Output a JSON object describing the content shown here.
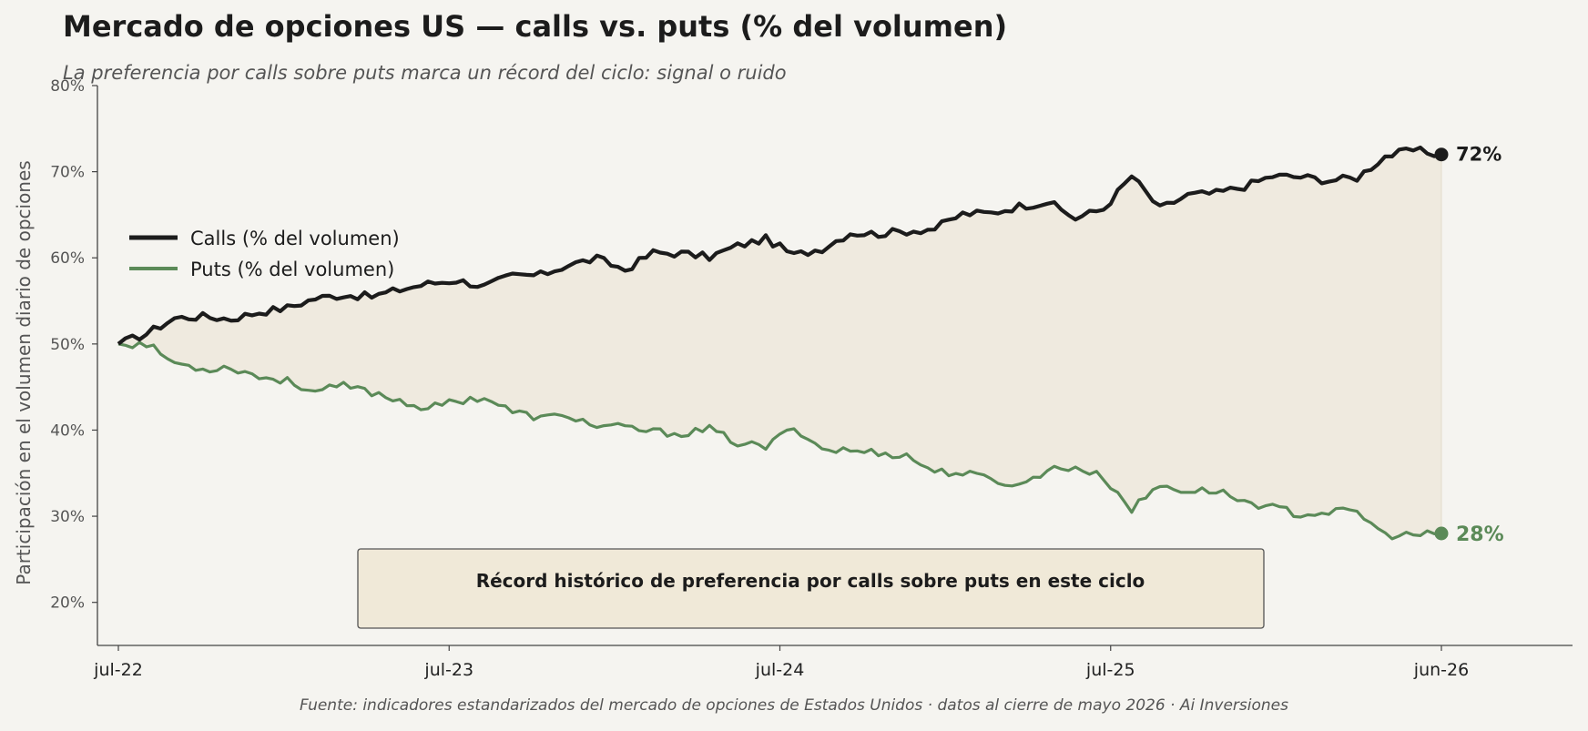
{
  "header": {
    "title": "Mercado de opciones US — calls vs. puts (% del volumen)",
    "subtitle": "La preferencia por calls sobre puts marca un récord del ciclo: signal o ruido"
  },
  "footer": {
    "source": "Fuente: indicadores estandarizados del mercado de opciones de Estados Unidos · datos al cierre de mayo 2026 · Ai Inversiones"
  },
  "colors": {
    "calls": "#1c1c1c",
    "puts": "#5b8a58",
    "fill": "#efeadf",
    "annotation_bg": "#f0e9d8",
    "axis": "#444444",
    "tick_text": "#555555"
  },
  "chart_data": {
    "type": "line",
    "xlabel": "",
    "ylabel": "Participación en el volumen diario de opciones",
    "ylim": [
      15,
      80
    ],
    "yticks": [
      20,
      30,
      40,
      50,
      60,
      70,
      80
    ],
    "ytick_labels": [
      "20%",
      "30%",
      "40%",
      "50%",
      "60%",
      "70%",
      "80%"
    ],
    "xticks": [
      "jul-22",
      "jul-23",
      "jul-24",
      "jul-25",
      "jun-26"
    ],
    "grid": false,
    "legend": "upper-left",
    "legend_entries": [
      "Calls (% del volumen)",
      "Puts (% del volumen)"
    ],
    "series": [
      {
        "name": "Calls (% del volumen)",
        "start": "2022-07",
        "end": "2026-06",
        "values": [
          50.0,
          51.2,
          53.0,
          53.2,
          52.9,
          53.7,
          54.2,
          55.3,
          55.7,
          55.5,
          56.3,
          57.0,
          57.4,
          56.7,
          57.9,
          58.0,
          59.2,
          59.9,
          58.6,
          60.6,
          60.5,
          60.1,
          61.4,
          62.2,
          60.3,
          61.1,
          62.9,
          62.8,
          63.1,
          63.4,
          65.1,
          65.2,
          66.0,
          66.5,
          64.6,
          65.7,
          69.5,
          65.7,
          67.3,
          67.5,
          68.3,
          69.5,
          69.4,
          69.0,
          69.3,
          71.8,
          72.5,
          72.0
        ],
        "end_label": "72%"
      },
      {
        "name": "Puts (% del volumen)",
        "start": "2022-07",
        "end": "2026-06",
        "values": [
          50.0,
          50.0,
          47.8,
          47.1,
          47.3,
          46.2,
          45.7,
          44.5,
          45.1,
          44.4,
          43.4,
          42.5,
          43.4,
          43.8,
          42.1,
          41.4,
          41.7,
          40.4,
          40.3,
          39.8,
          39.6,
          40.1,
          38.5,
          38.0,
          40.4,
          37.8,
          37.6,
          37.4,
          37.0,
          35.2,
          35.0,
          34.3,
          33.5,
          35.4,
          35.7,
          34.5,
          30.8,
          33.6,
          32.9,
          33.0,
          31.7,
          31.0,
          30.2,
          30.5,
          30.5,
          27.8,
          27.8,
          28.0
        ],
        "end_label": "28%"
      }
    ],
    "annotations": [
      {
        "text": "Récord histórico de preferencia por calls sobre puts en este ciclo"
      }
    ]
  }
}
